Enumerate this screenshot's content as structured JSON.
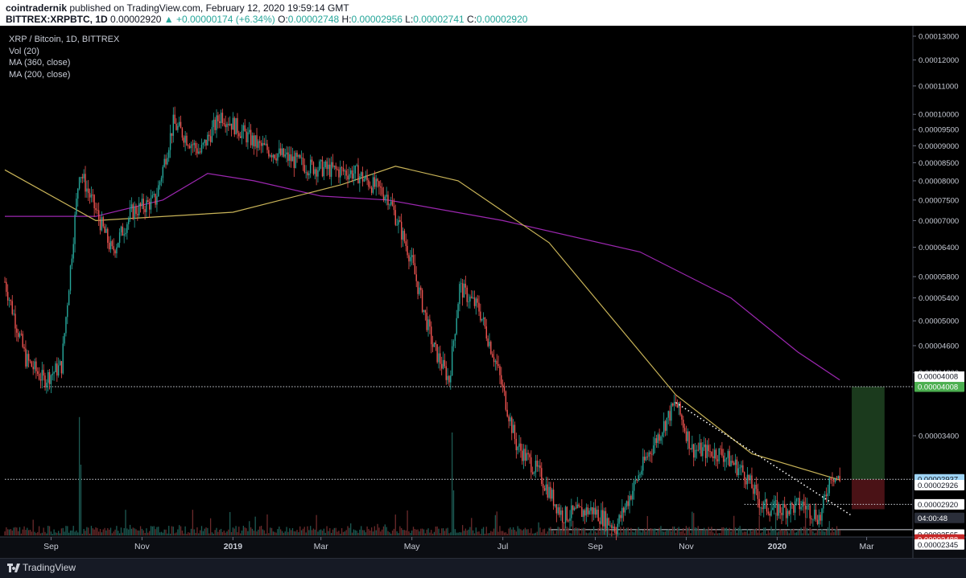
{
  "header": {
    "author": "cointradernik",
    "published": "published on TradingView.com, February 12, 2020 19:59:14 GMT",
    "symbol": "BITTREX:XRPBTC, 1D",
    "price": "0.00002920",
    "change": "▲ +0.00000174 (+6.34%)",
    "o_label": "O:",
    "o_value": "0.00002748",
    "h_label": "H:",
    "h_value": "0.00002956",
    "l_label": "L:",
    "l_value": "0.00002741",
    "c_label": "C:",
    "c_value": "0.00002920"
  },
  "legend": {
    "title": "XRP / Bitcoin, 1D, BITTREX",
    "vol": "Vol (20)",
    "ma1": "MA (360, close)",
    "ma2": "MA (200, close)"
  },
  "footer": {
    "brand": "TradingView"
  },
  "colors": {
    "up": "#26a69a",
    "down": "#ef5350",
    "ma360": "#9c27b0",
    "ma200": "#c9b458",
    "target_zone": "#1b3a1d",
    "stop_zone": "#4a1216"
  },
  "chart_data": {
    "type": "candlestick",
    "scale": "log",
    "y_ticks": [
      "0.00013000",
      "0.00012000",
      "0.00011000",
      "0.00010000",
      "0.00009500",
      "0.00009000",
      "0.00008500",
      "0.00008000",
      "0.00007500",
      "0.00007000",
      "0.00006400",
      "0.00005800",
      "0.00005400",
      "0.00005000",
      "0.00004600",
      "0.00004200",
      "0.00003400"
    ],
    "x_ticks": [
      "Sep",
      "Nov",
      "2019",
      "Mar",
      "May",
      "Jul",
      "Sep",
      "Nov",
      "2020",
      "Mar"
    ],
    "x_tick_dates": [
      "2018-09-01",
      "2018-11-01",
      "2019-01-01",
      "2019-03-01",
      "2019-05-01",
      "2019-07-01",
      "2019-09-01",
      "2019-11-01",
      "2020-01-01",
      "2020-03-01"
    ],
    "x_range": [
      "2018-08-01",
      "2020-04-01"
    ],
    "last_date": "2020-02-12",
    "key_prices": [
      {
        "date": "2018-08-01",
        "value": 5.7e-05
      },
      {
        "date": "2018-08-15",
        "value": 4.4e-05
      },
      {
        "date": "2018-08-27",
        "value": 4.1e-05
      },
      {
        "date": "2018-09-08",
        "value": 4.3e-05
      },
      {
        "date": "2018-09-20",
        "value": 8.3e-05
      },
      {
        "date": "2018-10-12",
        "value": 6.3e-05
      },
      {
        "date": "2018-10-25",
        "value": 7.2e-05
      },
      {
        "date": "2018-11-10",
        "value": 7.5e-05
      },
      {
        "date": "2018-11-22",
        "value": 9.7e-05
      },
      {
        "date": "2018-12-10",
        "value": 8.8e-05
      },
      {
        "date": "2018-12-24",
        "value": 0.0001
      },
      {
        "date": "2019-01-18",
        "value": 9e-05
      },
      {
        "date": "2019-02-20",
        "value": 8.4e-05
      },
      {
        "date": "2019-03-25",
        "value": 8.2e-05
      },
      {
        "date": "2019-04-15",
        "value": 7.6e-05
      },
      {
        "date": "2019-04-30",
        "value": 6.2e-05
      },
      {
        "date": "2019-05-15",
        "value": 4.6e-05
      },
      {
        "date": "2019-05-26",
        "value": 4.1e-05
      },
      {
        "date": "2019-06-02",
        "value": 5.6e-05
      },
      {
        "date": "2019-06-15",
        "value": 5.2e-05
      },
      {
        "date": "2019-06-27",
        "value": 4.3e-05
      },
      {
        "date": "2019-07-10",
        "value": 3.3e-05
      },
      {
        "date": "2019-07-25",
        "value": 3e-05
      },
      {
        "date": "2019-08-10",
        "value": 2.6e-05
      },
      {
        "date": "2019-08-30",
        "value": 2.65e-05
      },
      {
        "date": "2019-09-15",
        "value": 2.5e-05
      },
      {
        "date": "2019-10-05",
        "value": 3.15e-05
      },
      {
        "date": "2019-10-25",
        "value": 3.8e-05
      },
      {
        "date": "2019-11-05",
        "value": 3.25e-05
      },
      {
        "date": "2019-11-25",
        "value": 3.2e-05
      },
      {
        "date": "2019-12-10",
        "value": 3e-05
      },
      {
        "date": "2019-12-22",
        "value": 2.68e-05
      },
      {
        "date": "2020-01-05",
        "value": 2.65e-05
      },
      {
        "date": "2020-01-18",
        "value": 2.7e-05
      },
      {
        "date": "2020-01-30",
        "value": 2.58e-05
      },
      {
        "date": "2020-02-06",
        "value": 3e-05
      },
      {
        "date": "2020-02-12",
        "value": 2.92e-05
      }
    ],
    "ma360": [
      {
        "date": "2018-08-01",
        "value": 7.1e-05
      },
      {
        "date": "2018-10-01",
        "value": 7.1e-05
      },
      {
        "date": "2018-11-15",
        "value": 7.5e-05
      },
      {
        "date": "2018-12-15",
        "value": 8.2e-05
      },
      {
        "date": "2019-01-15",
        "value": 8e-05
      },
      {
        "date": "2019-03-01",
        "value": 7.6e-05
      },
      {
        "date": "2019-04-15",
        "value": 7.5e-05
      },
      {
        "date": "2019-07-01",
        "value": 7e-05
      },
      {
        "date": "2019-10-01",
        "value": 6.3e-05
      },
      {
        "date": "2019-12-01",
        "value": 5.4e-05
      },
      {
        "date": "2020-01-15",
        "value": 4.5e-05
      },
      {
        "date": "2020-02-12",
        "value": 4.1e-05
      }
    ],
    "ma200": [
      {
        "date": "2018-08-01",
        "value": 8.3e-05
      },
      {
        "date": "2018-10-01",
        "value": 7e-05
      },
      {
        "date": "2019-01-01",
        "value": 7.2e-05
      },
      {
        "date": "2019-03-15",
        "value": 7.9e-05
      },
      {
        "date": "2019-04-20",
        "value": 8.4e-05
      },
      {
        "date": "2019-06-01",
        "value": 8e-05
      },
      {
        "date": "2019-08-01",
        "value": 6.5e-05
      },
      {
        "date": "2019-10-25",
        "value": 3.9e-05
      },
      {
        "date": "2019-12-15",
        "value": 3.2e-05
      },
      {
        "date": "2020-02-12",
        "value": 2.93e-05
      }
    ],
    "levels": [
      {
        "value": 4.008e-05,
        "label": "0.00004008",
        "style": "dotted",
        "from": "2018-08-27"
      },
      {
        "value": 2.937e-05,
        "label": "0.00002937",
        "style": "dotted",
        "from": "2018-08-01"
      },
      {
        "value": 2.7e-05,
        "label": "",
        "style": "dotted",
        "from": "2019-12-10"
      },
      {
        "value": 2.48e-05,
        "label": "",
        "style": "solid",
        "from": "2019-08-01"
      }
    ],
    "trendline": [
      {
        "date": "2019-10-25",
        "value": 3.8e-05
      },
      {
        "date": "2020-02-20",
        "value": 2.6e-05
      }
    ],
    "trade_zone": {
      "from": "2020-02-20",
      "to": "2020-03-13",
      "target": 4.008e-05,
      "entry": 2.937e-05,
      "stop": 2.7e-05
    },
    "price_tags": [
      {
        "label": "0.00004008",
        "value": 4.008e-05,
        "kind": "green"
      },
      {
        "label": "0.00002937",
        "value": 2.937e-05,
        "kind": "blue"
      },
      {
        "label": "0.00002926",
        "value": 2.88e-05,
        "kind": "plain"
      },
      {
        "label": "0.00002920",
        "value": 2.7e-05,
        "kind": "plain"
      },
      {
        "label": "04:00:48",
        "value": 2.58e-05,
        "kind": "time"
      },
      {
        "label": "0.00002565",
        "value": 2.44e-05,
        "kind": "plain"
      },
      {
        "label": "0.00002488",
        "value": 2.4e-05,
        "kind": "red"
      },
      {
        "label": "0.00002345",
        "value": 2.36e-05,
        "kind": "plain"
      }
    ],
    "volume_spikes": [
      {
        "date": "2018-09-20",
        "value": 9.2
      },
      {
        "date": "2018-09-21",
        "value": 5.5
      },
      {
        "date": "2019-05-28",
        "value": 8.0
      },
      {
        "date": "2019-05-29",
        "value": 3.5
      },
      {
        "date": "2019-12-20",
        "value": 1.5
      }
    ]
  }
}
